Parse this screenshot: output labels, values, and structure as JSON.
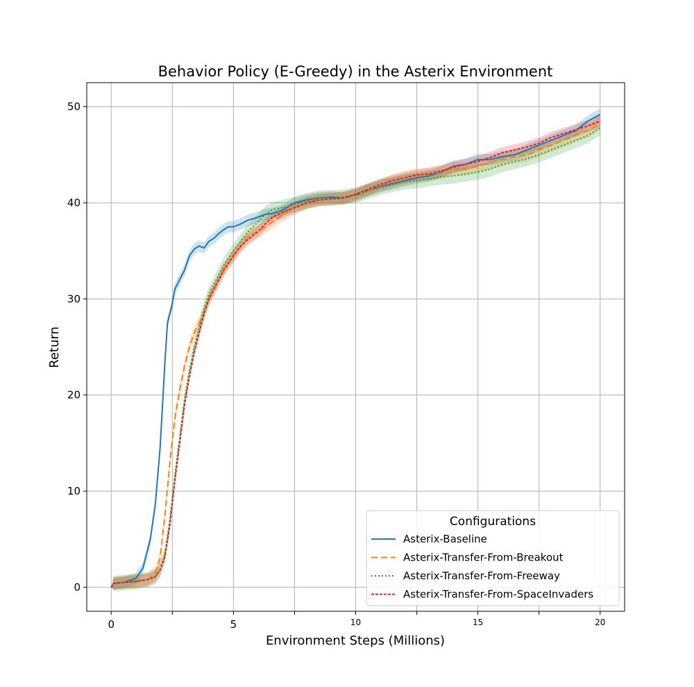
{
  "chart_data": {
    "type": "line",
    "title": "Behavior Policy (E-Greedy) in the Asterix Environment",
    "xlabel": "Environment Steps (Millions)",
    "ylabel": "Return",
    "xlim": [
      -1.0,
      21.0
    ],
    "ylim": [
      -2.5,
      52.5
    ],
    "x_ticks": [
      {
        "value": 0,
        "label": "0",
        "small": false
      },
      {
        "value": 2.5,
        "label": "",
        "small": false
      },
      {
        "value": 5,
        "label": "5",
        "small": false
      },
      {
        "value": 7.5,
        "label": "",
        "small": false
      },
      {
        "value": 10,
        "label": "10",
        "small": true
      },
      {
        "value": 12.5,
        "label": "",
        "small": true
      },
      {
        "value": 15,
        "label": "15",
        "small": true
      },
      {
        "value": 17.5,
        "label": "",
        "small": true
      },
      {
        "value": 20,
        "label": "20",
        "small": true
      }
    ],
    "y_ticks": [
      {
        "value": 0,
        "label": "0"
      },
      {
        "value": 10,
        "label": "10"
      },
      {
        "value": 20,
        "label": "20"
      },
      {
        "value": 30,
        "label": "30"
      },
      {
        "value": 40,
        "label": "40"
      },
      {
        "value": 50,
        "label": "50"
      }
    ],
    "grid": true,
    "legend": {
      "title": "Configurations",
      "position": "lower-right"
    },
    "series": [
      {
        "name": "Asterix-Baseline",
        "color": "#1f77b4",
        "dash": "solid",
        "band": 0.6,
        "x": [
          0,
          0.1,
          0.5,
          1.0,
          1.3,
          1.6,
          1.8,
          2.0,
          2.1,
          2.2,
          2.3,
          2.4,
          2.5,
          2.6,
          2.8,
          3.0,
          3.2,
          3.4,
          3.6,
          3.8,
          4.0,
          4.2,
          4.4,
          4.6,
          4.8,
          5.0,
          5.3,
          5.6,
          6.0,
          6.3,
          6.6,
          7.0,
          7.5,
          8.0,
          8.5,
          9.0,
          9.5,
          10.0,
          10.5,
          11.0,
          11.5,
          12.0,
          12.5,
          13.0,
          13.5,
          14.0,
          14.5,
          15.0,
          15.5,
          16.0,
          16.5,
          17.0,
          17.5,
          18.0,
          18.5,
          19.0,
          19.5,
          20.0
        ],
        "y": [
          0.0,
          0.4,
          0.5,
          0.9,
          2.0,
          5.0,
          8.5,
          14.5,
          19.0,
          23.5,
          27.5,
          28.5,
          29.5,
          31.0,
          32.0,
          33.0,
          34.5,
          35.2,
          35.5,
          35.3,
          36.0,
          36.3,
          36.8,
          37.2,
          37.5,
          37.5,
          37.8,
          38.2,
          38.5,
          38.8,
          38.9,
          39.2,
          40.0,
          40.3,
          40.5,
          40.6,
          40.5,
          40.8,
          41.3,
          41.7,
          42.0,
          42.3,
          42.6,
          42.8,
          43.2,
          43.8,
          44.0,
          44.5,
          44.5,
          44.8,
          45.0,
          45.5,
          46.0,
          46.5,
          47.0,
          47.5,
          48.5,
          49.2
        ]
      },
      {
        "name": "Asterix-Transfer-From-Breakout",
        "color": "#ff7f0e",
        "dash": "9,5",
        "band": 0.7,
        "x": [
          0,
          0.1,
          0.5,
          1.0,
          1.5,
          1.8,
          2.0,
          2.2,
          2.4,
          2.6,
          2.8,
          3.0,
          3.2,
          3.4,
          3.6,
          3.8,
          4.0,
          4.3,
          4.6,
          5.0,
          5.3,
          5.6,
          6.0,
          6.3,
          6.6,
          7.0,
          7.5,
          8.0,
          8.5,
          9.0,
          9.5,
          10.0,
          10.5,
          11.0,
          11.5,
          12.0,
          12.5,
          13.0,
          13.5,
          14.0,
          14.5,
          15.0,
          15.5,
          16.0,
          16.5,
          17.0,
          17.5,
          18.0,
          18.5,
          19.0,
          19.5,
          20.0
        ],
        "y": [
          0.0,
          0.4,
          0.5,
          0.6,
          0.8,
          1.5,
          3.0,
          7.5,
          13.0,
          17.5,
          20.5,
          23.0,
          25.0,
          26.5,
          27.5,
          28.5,
          30.0,
          31.5,
          33.0,
          34.5,
          35.5,
          36.5,
          37.0,
          37.5,
          38.0,
          38.7,
          39.5,
          40.0,
          40.3,
          40.4,
          40.5,
          40.8,
          41.3,
          41.8,
          42.2,
          42.6,
          42.8,
          43.0,
          43.2,
          43.5,
          43.5,
          43.8,
          44.2,
          44.5,
          44.8,
          45.0,
          45.5,
          46.0,
          46.5,
          47.0,
          47.5,
          48.3
        ]
      },
      {
        "name": "Asterix-Transfer-From-Freeway",
        "color": "#2ca02c",
        "dash": "2,3",
        "band": 0.8,
        "x": [
          0,
          0.1,
          0.5,
          1.0,
          1.5,
          1.8,
          2.0,
          2.2,
          2.4,
          2.6,
          2.8,
          3.0,
          3.2,
          3.4,
          3.6,
          3.8,
          4.0,
          4.3,
          4.6,
          5.0,
          5.3,
          5.6,
          6.0,
          6.3,
          6.6,
          7.0,
          7.5,
          8.0,
          8.5,
          9.0,
          9.5,
          10.0,
          10.5,
          11.0,
          11.5,
          12.0,
          12.5,
          13.0,
          13.5,
          14.0,
          14.5,
          15.0,
          15.5,
          16.0,
          16.5,
          17.0,
          17.5,
          18.0,
          18.5,
          19.0,
          19.5,
          20.0
        ],
        "y": [
          0.0,
          0.4,
          0.5,
          0.6,
          0.8,
          1.1,
          1.8,
          3.5,
          7.0,
          11.5,
          15.5,
          19.5,
          22.5,
          25.0,
          27.0,
          29.0,
          30.5,
          32.0,
          33.5,
          35.0,
          36.0,
          37.0,
          38.0,
          38.8,
          39.3,
          39.5,
          39.8,
          40.2,
          40.5,
          40.5,
          40.6,
          40.8,
          41.2,
          41.6,
          41.9,
          42.2,
          42.3,
          42.5,
          42.7,
          42.8,
          43.0,
          43.2,
          43.5,
          44.0,
          44.3,
          44.6,
          45.0,
          45.5,
          46.0,
          46.5,
          47.0,
          47.8
        ]
      },
      {
        "name": "Asterix-Transfer-From-SpaceInvaders",
        "color": "#d62728",
        "dash": "4,2",
        "band": 0.6,
        "x": [
          0,
          0.1,
          0.5,
          1.0,
          1.5,
          1.8,
          2.0,
          2.2,
          2.4,
          2.6,
          2.8,
          3.0,
          3.2,
          3.4,
          3.6,
          3.8,
          4.0,
          4.3,
          4.6,
          5.0,
          5.3,
          5.6,
          6.0,
          6.3,
          6.6,
          7.0,
          7.5,
          8.0,
          8.5,
          9.0,
          9.5,
          10.0,
          10.5,
          11.0,
          11.5,
          12.0,
          12.5,
          13.0,
          13.5,
          14.0,
          14.5,
          15.0,
          15.5,
          16.0,
          16.5,
          17.0,
          17.5,
          18.0,
          18.5,
          19.0,
          19.5,
          20.0
        ],
        "y": [
          0.0,
          0.4,
          0.5,
          0.6,
          0.8,
          1.1,
          1.8,
          3.2,
          6.5,
          11.0,
          15.0,
          19.0,
          22.0,
          24.5,
          26.5,
          28.5,
          30.0,
          31.5,
          33.0,
          34.5,
          35.5,
          36.2,
          37.0,
          37.8,
          38.5,
          39.0,
          39.5,
          40.0,
          40.3,
          40.4,
          40.5,
          40.9,
          41.4,
          41.9,
          42.3,
          42.6,
          42.9,
          43.0,
          43.3,
          43.7,
          44.0,
          44.3,
          44.7,
          45.2,
          45.5,
          45.8,
          46.2,
          46.8,
          47.2,
          47.6,
          48.0,
          48.5
        ]
      }
    ]
  }
}
